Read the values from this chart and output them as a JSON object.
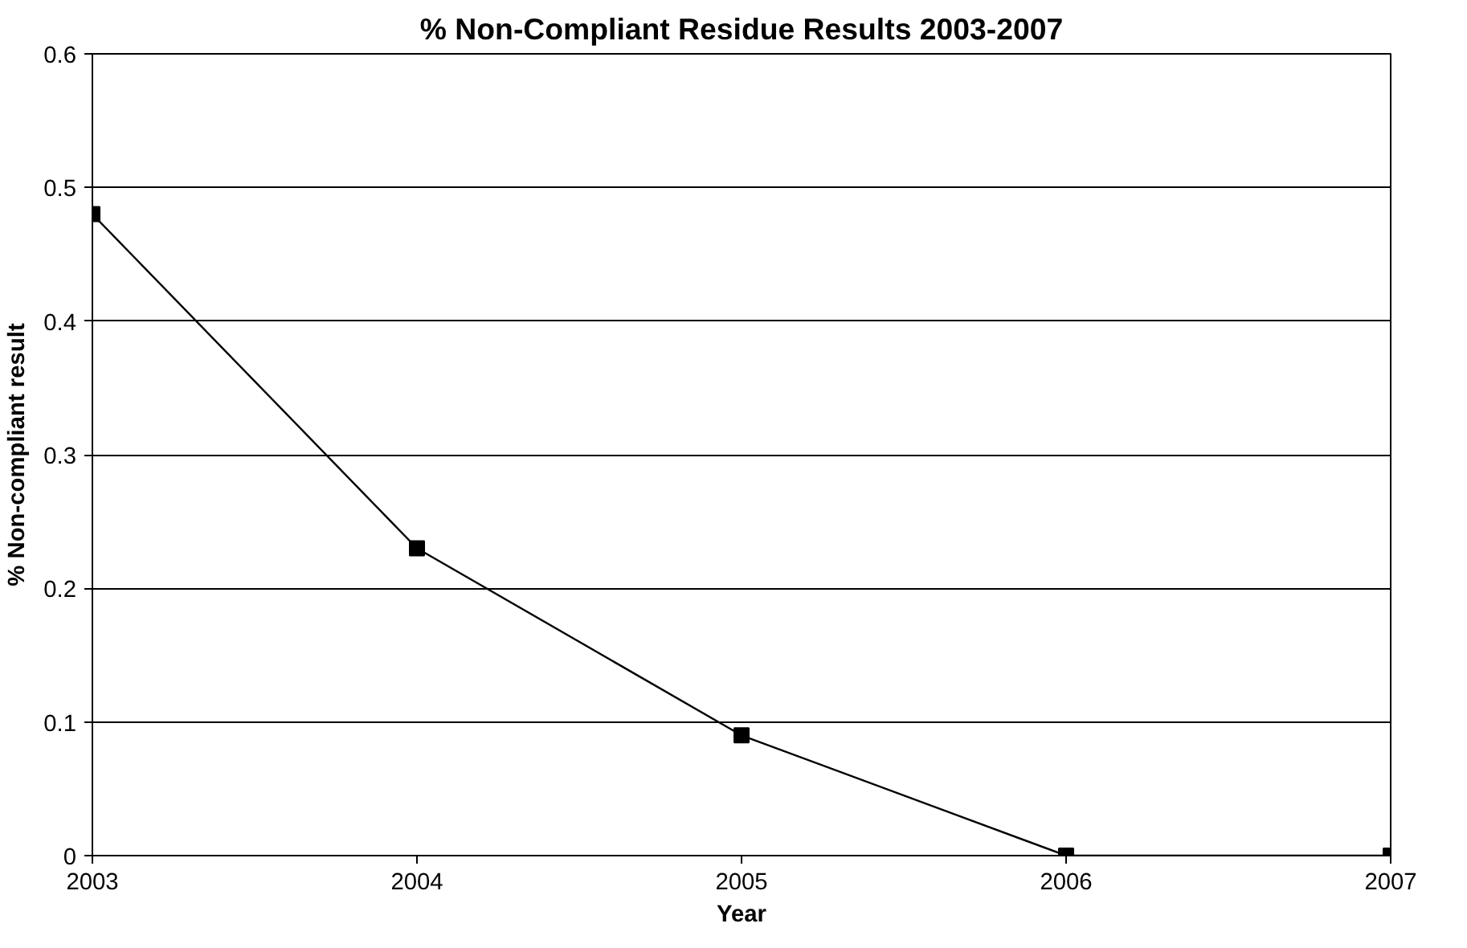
{
  "chart_data": {
    "type": "line",
    "title": "% Non-Compliant Residue Results 2003-2007",
    "xlabel": "Year",
    "ylabel": "% Non-compliant result",
    "categories": [
      "2003",
      "2004",
      "2005",
      "2006",
      "2007"
    ],
    "series": [
      {
        "color": "#000000",
        "values": [
          0.48,
          0.23,
          0.09,
          0,
          0
        ]
      }
    ],
    "ylim": [
      0,
      0.6
    ],
    "yticks": [
      0,
      0.1,
      0.2,
      0.3,
      0.4,
      0.5,
      0.6
    ],
    "grid": "y",
    "marker": "square",
    "line_style": "solid"
  }
}
